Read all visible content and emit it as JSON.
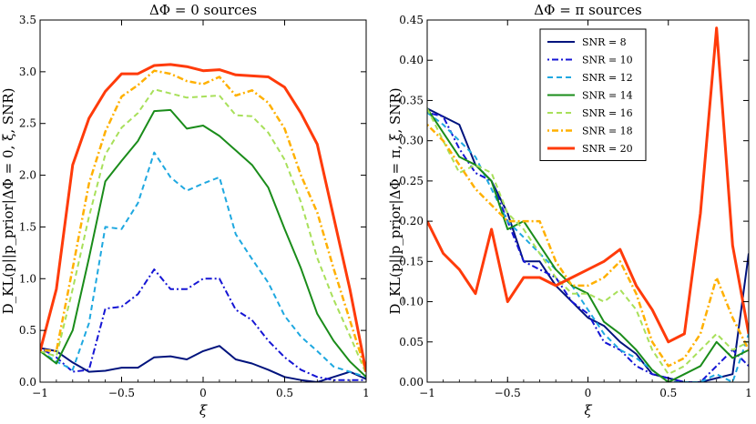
{
  "chart_data": [
    {
      "type": "line",
      "title": "ΔΦ = 0 sources",
      "xlabel": "ξ",
      "ylabel": "D_KL(p||p_prior|ΔΦ = 0, ξ, SNR)",
      "xlim": [
        -1,
        1
      ],
      "ylim": [
        0,
        3.5
      ],
      "xticks": [
        -1,
        -0.5,
        0,
        0.5,
        1
      ],
      "xtick_labels": [
        "−1",
        "−0.5",
        "0",
        "0.5",
        "1"
      ],
      "yticks": [
        0,
        0.5,
        1.0,
        1.5,
        2.0,
        2.5,
        3.0,
        3.5
      ],
      "ytick_labels": [
        "0.0",
        "0.5",
        "1.0",
        "1.5",
        "2.0",
        "2.5",
        "3.0",
        "3.5"
      ],
      "grid": false,
      "x": [
        -1,
        -0.9,
        -0.8,
        -0.7,
        -0.6,
        -0.5,
        -0.4,
        -0.3,
        -0.2,
        -0.1,
        0,
        0.1,
        0.2,
        0.3,
        0.4,
        0.5,
        0.6,
        0.7,
        0.8,
        0.9,
        1
      ],
      "series": [
        {
          "name": "SNR = 8",
          "values": [
            0.33,
            0.3,
            0.19,
            0.1,
            0.11,
            0.14,
            0.14,
            0.24,
            0.25,
            0.22,
            0.3,
            0.35,
            0.22,
            0.18,
            0.12,
            0.05,
            0.02,
            0.0,
            0.05,
            0.1,
            0.03
          ]
        },
        {
          "name": "SNR = 10",
          "values": [
            0.33,
            0.24,
            0.1,
            0.12,
            0.71,
            0.73,
            0.85,
            1.09,
            0.9,
            0.9,
            1.0,
            1.0,
            0.7,
            0.6,
            0.4,
            0.24,
            0.12,
            0.05,
            0.02,
            0.02,
            0.02
          ]
        },
        {
          "name": "SNR = 12",
          "values": [
            0.3,
            0.2,
            0.12,
            0.57,
            1.5,
            1.48,
            1.73,
            2.22,
            1.98,
            1.85,
            1.92,
            1.98,
            1.43,
            1.19,
            0.96,
            0.64,
            0.44,
            0.3,
            0.15,
            0.1,
            0.05
          ]
        },
        {
          "name": "SNR = 14",
          "values": [
            0.3,
            0.18,
            0.5,
            1.2,
            1.94,
            2.14,
            2.33,
            2.62,
            2.63,
            2.45,
            2.48,
            2.38,
            2.24,
            2.1,
            1.88,
            1.48,
            1.1,
            0.66,
            0.4,
            0.2,
            0.05
          ]
        },
        {
          "name": "SNR = 16",
          "values": [
            0.3,
            0.25,
            0.9,
            1.6,
            2.2,
            2.46,
            2.6,
            2.83,
            2.79,
            2.75,
            2.76,
            2.77,
            2.58,
            2.57,
            2.41,
            2.15,
            1.74,
            1.2,
            0.8,
            0.45,
            0.08
          ]
        },
        {
          "name": "SNR = 18",
          "values": [
            0.31,
            0.3,
            1.1,
            1.92,
            2.42,
            2.76,
            2.87,
            3.01,
            2.98,
            2.91,
            2.88,
            2.95,
            2.77,
            2.82,
            2.7,
            2.45,
            2.0,
            1.64,
            1.1,
            0.6,
            0.1
          ]
        },
        {
          "name": "SNR = 20",
          "values": [
            0.3,
            0.9,
            2.1,
            2.55,
            2.81,
            2.98,
            2.98,
            3.06,
            3.07,
            3.05,
            3.01,
            3.02,
            2.97,
            2.96,
            2.95,
            2.85,
            2.6,
            2.3,
            1.6,
            0.9,
            0.1
          ]
        }
      ]
    },
    {
      "type": "line",
      "title": "ΔΦ = π sources",
      "xlabel": "ξ",
      "ylabel": "D_KL(p||p_prior|ΔΦ = π, ξ, SNR)",
      "xlim": [
        -1,
        1
      ],
      "ylim": [
        0,
        0.45
      ],
      "xticks": [
        -1,
        -0.5,
        0,
        0.5,
        1
      ],
      "xtick_labels": [
        "−1",
        "−0.5",
        "0",
        "0.5",
        "1"
      ],
      "yticks": [
        0,
        0.05,
        0.1,
        0.15,
        0.2,
        0.25,
        0.3,
        0.35,
        0.4,
        0.45
      ],
      "ytick_labels": [
        "0.00",
        "0.05",
        "0.10",
        "0.15",
        "0.20",
        "0.25",
        "0.30",
        "0.35",
        "0.40",
        "0.45"
      ],
      "grid": false,
      "legend_position": "top-center",
      "x": [
        -1,
        -0.9,
        -0.8,
        -0.7,
        -0.6,
        -0.5,
        -0.4,
        -0.3,
        -0.2,
        -0.1,
        0,
        0.1,
        0.2,
        0.3,
        0.4,
        0.5,
        0.6,
        0.7,
        0.8,
        0.9,
        1
      ],
      "series": [
        {
          "name": "SNR = 8",
          "values": [
            0.34,
            0.33,
            0.32,
            0.27,
            0.25,
            0.21,
            0.15,
            0.15,
            0.12,
            0.1,
            0.08,
            0.07,
            0.05,
            0.035,
            0.01,
            0.005,
            0.0,
            0.0,
            0.005,
            0.01,
            0.16
          ]
        },
        {
          "name": "SNR = 10",
          "values": [
            0.335,
            0.33,
            0.29,
            0.26,
            0.25,
            0.2,
            0.15,
            0.14,
            0.13,
            0.1,
            0.085,
            0.05,
            0.04,
            0.02,
            0.01,
            0.005,
            0.0,
            0.0,
            0.02,
            0.04,
            0.02
          ]
        },
        {
          "name": "SNR = 12",
          "values": [
            0.335,
            0.32,
            0.3,
            0.28,
            0.24,
            0.2,
            0.18,
            0.16,
            0.14,
            0.12,
            0.09,
            0.06,
            0.04,
            0.03,
            0.015,
            0.0,
            0.0,
            0.0,
            0.01,
            0.0,
            0.06
          ]
        },
        {
          "name": "SNR = 14",
          "values": [
            0.34,
            0.31,
            0.28,
            0.27,
            0.25,
            0.19,
            0.2,
            0.17,
            0.14,
            0.12,
            0.11,
            0.075,
            0.06,
            0.04,
            0.015,
            0.0,
            0.01,
            0.02,
            0.05,
            0.03,
            0.04
          ]
        },
        {
          "name": "SNR = 16",
          "values": [
            0.34,
            0.3,
            0.26,
            0.27,
            0.26,
            0.21,
            0.19,
            0.16,
            0.13,
            0.11,
            0.11,
            0.1,
            0.115,
            0.09,
            0.04,
            0.01,
            0.02,
            0.04,
            0.06,
            0.04,
            0.05
          ]
        },
        {
          "name": "SNR = 18",
          "values": [
            0.32,
            0.3,
            0.27,
            0.24,
            0.22,
            0.2,
            0.2,
            0.2,
            0.15,
            0.12,
            0.12,
            0.13,
            0.15,
            0.11,
            0.05,
            0.02,
            0.03,
            0.06,
            0.13,
            0.08,
            0.04
          ]
        },
        {
          "name": "SNR = 20",
          "values": [
            0.2,
            0.16,
            0.14,
            0.11,
            0.19,
            0.1,
            0.13,
            0.13,
            0.12,
            0.13,
            0.14,
            0.15,
            0.165,
            0.12,
            0.09,
            0.05,
            0.06,
            0.21,
            0.44,
            0.17,
            0.06
          ]
        }
      ]
    }
  ],
  "styles": [
    {
      "color": "#00137d",
      "dash": "",
      "width": 2
    },
    {
      "color": "#1515d4",
      "dash": "2 3 7 3",
      "width": 2
    },
    {
      "color": "#1ea8e0",
      "dash": "6 4",
      "width": 2
    },
    {
      "color": "#1a8c1a",
      "dash": "",
      "width": 2
    },
    {
      "color": "#a8e05a",
      "dash": "6 4",
      "width": 2
    },
    {
      "color": "#ffb000",
      "dash": "2 3 7 3",
      "width": 2.5
    },
    {
      "color": "#ff3b0a",
      "dash": "",
      "width": 3
    }
  ]
}
